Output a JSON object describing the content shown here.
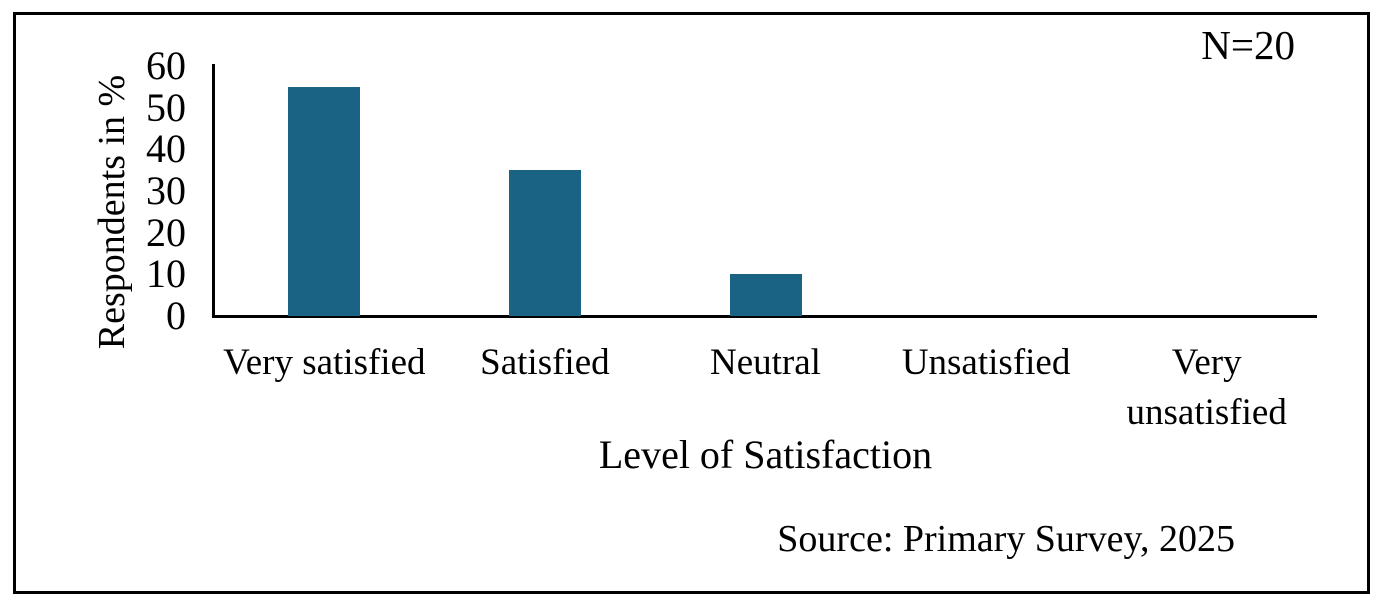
{
  "chart_data": {
    "type": "bar",
    "title": "",
    "categories": [
      "Very satisfied",
      "Satisfied",
      "Neutral",
      "Unsatisfied",
      "Very unsatisfied"
    ],
    "category_lines": [
      [
        "Very satisfied"
      ],
      [
        "Satisfied"
      ],
      [
        "Neutral"
      ],
      [
        "Unsatisfied"
      ],
      [
        "Very",
        "unsatisfied"
      ]
    ],
    "values": [
      55,
      35,
      10,
      0,
      0
    ],
    "xlabel": "Level of Satisfaction",
    "ylabel": "Respondents in %",
    "ylim": [
      0,
      60
    ],
    "yticks": [
      0,
      10,
      20,
      30,
      40,
      50,
      60
    ],
    "bar_color": "#1B6385",
    "axis_color": "#000000",
    "grid": false,
    "legend": "none"
  },
  "annotations": {
    "sample_size": "N=20",
    "source": "Source: Primary Survey, 2025"
  }
}
